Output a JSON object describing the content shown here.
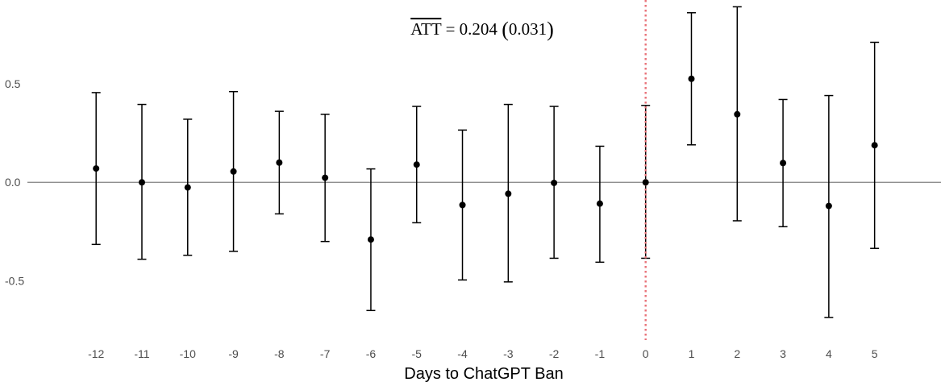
{
  "chart_data": {
    "type": "scatter",
    "subtype": "event-study point estimates with confidence interval error bars",
    "xlabel": "Days to ChatGPT Ban",
    "ylabel": "",
    "x": [
      -12,
      -11,
      -10,
      -9,
      -8,
      -7,
      -6,
      -5,
      -4,
      -3,
      -2,
      -1,
      0,
      1,
      2,
      3,
      4,
      5
    ],
    "estimate": [
      0.07,
      0.0,
      -0.026,
      0.055,
      0.1,
      0.023,
      -0.29,
      0.09,
      -0.115,
      -0.058,
      -0.003,
      -0.108,
      0.0,
      0.525,
      0.345,
      0.098,
      -0.12,
      0.188
    ],
    "ci_lower": [
      -0.315,
      -0.39,
      -0.37,
      -0.35,
      -0.16,
      -0.3,
      -0.65,
      -0.205,
      -0.495,
      -0.505,
      -0.385,
      -0.405,
      -0.385,
      0.19,
      -0.195,
      -0.225,
      -0.685,
      -0.335
    ],
    "ci_upper": [
      0.455,
      0.395,
      0.32,
      0.46,
      0.36,
      0.345,
      0.068,
      0.385,
      0.265,
      0.395,
      0.385,
      0.183,
      0.39,
      0.86,
      0.89,
      0.42,
      0.44,
      0.71
    ],
    "x_ticks": [
      "-12",
      "-11",
      "-10",
      "-9",
      "-8",
      "-7",
      "-6",
      "-5",
      "-4",
      "-3",
      "-2",
      "-1",
      "0",
      "1",
      "2",
      "3",
      "4",
      "5"
    ],
    "y_ticks": [
      {
        "value": 0.5,
        "label": "0.5"
      },
      {
        "value": 0.0,
        "label": "0.0"
      },
      {
        "value": -0.5,
        "label": "-0.5"
      }
    ],
    "xlim": [
      -13.5,
      6.45
    ],
    "ylim": [
      -0.8,
      0.9
    ],
    "reference_lines": {
      "horizontal": {
        "y": 0,
        "color": "#808080",
        "style": "solid"
      },
      "vertical": {
        "x": 0,
        "color": "#e8737a",
        "style": "dotted"
      }
    },
    "annotation": {
      "symbol": "ATT",
      "text": " = 0.204 ",
      "paren_open": "(",
      "se": "0.031",
      "paren_close": ")"
    },
    "grid": false,
    "legend": "none",
    "colors": {
      "points": "#000000",
      "errorbars": "#000000",
      "zero_line": "#808080",
      "event_line": "#e8737a"
    }
  }
}
